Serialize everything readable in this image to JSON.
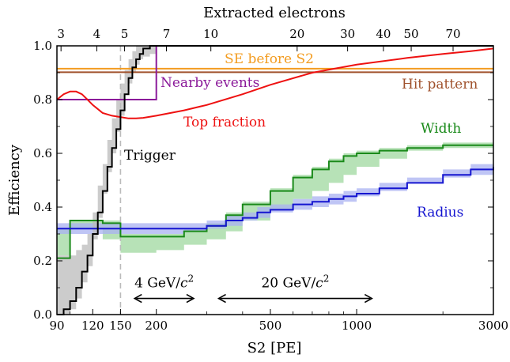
{
  "chart_data": {
    "type": "line",
    "title": "",
    "xlabel": "S2 [PE]",
    "ylabel": "Efficiency",
    "top_axis_label": "Extracted electrons",
    "x_scale": "log",
    "xlim": [
      90,
      3000
    ],
    "ylim": [
      0.0,
      1.0
    ],
    "x_ticks": [
      {
        "value": 90,
        "label": "90"
      },
      {
        "value": 120,
        "label": "120"
      },
      {
        "value": 150,
        "label": "150"
      },
      {
        "value": 200,
        "label": "200"
      },
      {
        "value": 500,
        "label": "500"
      },
      {
        "value": 1000,
        "label": "1000"
      },
      {
        "value": 3000,
        "label": "3000"
      }
    ],
    "y_ticks": [
      {
        "value": 0.0,
        "label": "0.0"
      },
      {
        "value": 0.2,
        "label": "0.2"
      },
      {
        "value": 0.4,
        "label": "0.4"
      },
      {
        "value": 0.6,
        "label": "0.6"
      },
      {
        "value": 0.8,
        "label": "0.8"
      },
      {
        "value": 1.0,
        "label": "1.0"
      }
    ],
    "top_ticks": [
      {
        "value": 3,
        "label": "3"
      },
      {
        "value": 4,
        "label": "4"
      },
      {
        "value": 5,
        "label": "5"
      },
      {
        "value": 7,
        "label": "7"
      },
      {
        "value": 10,
        "label": "10"
      },
      {
        "value": 20,
        "label": "20"
      },
      {
        "value": 30,
        "label": "30"
      },
      {
        "value": 40,
        "label": "40"
      },
      {
        "value": 50,
        "label": "50"
      },
      {
        "value": 70,
        "label": "70"
      }
    ],
    "series": [
      {
        "name": "SE before S2",
        "color": "#f39c20",
        "kind": "hline",
        "y": 0.915
      },
      {
        "name": "Hit pattern",
        "color": "#a0522d",
        "kind": "hline",
        "y": 0.902
      },
      {
        "name": "Nearby events",
        "color": "#8b1a9a",
        "kind": "step",
        "x": [
          90,
          200,
          200,
          3000
        ],
        "y": [
          0.8,
          0.8,
          1.0,
          1.0
        ]
      },
      {
        "name": "Top fraction",
        "color": "#ee1111",
        "kind": "line",
        "x": [
          90,
          95,
          100,
          105,
          110,
          115,
          120,
          130,
          140,
          150,
          160,
          170,
          180,
          200,
          250,
          300,
          400,
          500,
          700,
          1000,
          1500,
          2000,
          2500,
          3000
        ],
        "y": [
          0.8,
          0.82,
          0.83,
          0.83,
          0.82,
          0.8,
          0.78,
          0.75,
          0.74,
          0.735,
          0.73,
          0.73,
          0.732,
          0.74,
          0.76,
          0.78,
          0.82,
          0.855,
          0.9,
          0.93,
          0.955,
          0.97,
          0.98,
          0.99
        ]
      },
      {
        "name": "Width",
        "color": "#1a8a1a",
        "band_color": "#9fd89f",
        "kind": "step",
        "x": [
          90,
          100,
          130,
          150,
          200,
          250,
          300,
          350,
          400,
          500,
          600,
          700,
          800,
          900,
          1000,
          1200,
          1500,
          2000,
          2500,
          3000
        ],
        "y": [
          0.21,
          0.35,
          0.34,
          0.29,
          0.29,
          0.31,
          0.33,
          0.37,
          0.41,
          0.46,
          0.51,
          0.54,
          0.57,
          0.59,
          0.6,
          0.61,
          0.62,
          0.63,
          0.63,
          0.63
        ],
        "band_low": [
          0.2,
          0.32,
          0.32,
          0.28,
          0.23,
          0.24,
          0.26,
          0.28,
          0.31,
          0.35,
          0.39,
          0.43,
          0.46,
          0.49,
          0.52,
          0.55,
          0.58,
          0.61,
          0.62,
          0.62
        ],
        "band_high": [
          0.22,
          0.35,
          0.35,
          0.3,
          0.3,
          0.32,
          0.34,
          0.38,
          0.42,
          0.47,
          0.52,
          0.55,
          0.58,
          0.6,
          0.61,
          0.62,
          0.63,
          0.64,
          0.64,
          0.64
        ]
      },
      {
        "name": "Radius",
        "color": "#1515d0",
        "band_color": "#aab2f2",
        "kind": "step",
        "x": [
          90,
          150,
          200,
          250,
          300,
          350,
          400,
          450,
          500,
          600,
          700,
          800,
          900,
          1000,
          1200,
          1500,
          2000,
          2500,
          3000
        ],
        "y": [
          0.32,
          0.32,
          0.32,
          0.32,
          0.33,
          0.35,
          0.36,
          0.38,
          0.39,
          0.41,
          0.42,
          0.43,
          0.44,
          0.45,
          0.47,
          0.49,
          0.52,
          0.54,
          0.55
        ],
        "band_low": [
          0.3,
          0.3,
          0.3,
          0.3,
          0.31,
          0.32,
          0.33,
          0.35,
          0.36,
          0.38,
          0.39,
          0.4,
          0.41,
          0.42,
          0.44,
          0.46,
          0.49,
          0.51,
          0.52
        ],
        "band_high": [
          0.34,
          0.34,
          0.34,
          0.34,
          0.35,
          0.37,
          0.38,
          0.4,
          0.41,
          0.43,
          0.44,
          0.45,
          0.46,
          0.47,
          0.49,
          0.51,
          0.54,
          0.56,
          0.57
        ]
      },
      {
        "name": "Trigger",
        "color": "#000000",
        "band_color": "#bbbbbb",
        "kind": "step",
        "x": [
          90,
          95,
          100,
          105,
          110,
          115,
          120,
          125,
          130,
          135,
          140,
          145,
          150,
          155,
          160,
          165,
          170,
          175,
          180,
          190,
          200,
          3000
        ],
        "y": [
          0.0,
          0.02,
          0.05,
          0.1,
          0.16,
          0.22,
          0.3,
          0.38,
          0.46,
          0.55,
          0.62,
          0.69,
          0.76,
          0.82,
          0.88,
          0.92,
          0.95,
          0.97,
          0.99,
          1.0,
          1.0,
          1.0
        ],
        "band_low": [
          0.0,
          0.0,
          0.0,
          0.02,
          0.06,
          0.12,
          0.18,
          0.28,
          0.36,
          0.45,
          0.53,
          0.6,
          0.68,
          0.74,
          0.82,
          0.86,
          0.9,
          0.93,
          0.95,
          0.96,
          0.97,
          1.0
        ],
        "band_high": [
          0.22,
          0.22,
          0.22,
          0.24,
          0.26,
          0.3,
          0.38,
          0.48,
          0.56,
          0.65,
          0.73,
          0.8,
          0.86,
          0.91,
          0.95,
          0.98,
          1.0,
          1.0,
          1.0,
          1.0,
          1.0,
          1.0
        ]
      }
    ],
    "reference_lines": [
      {
        "x": 150,
        "color": "#bbbbbb",
        "style": "dashed"
      }
    ],
    "labels": {
      "se_before_s2": "SE before S2",
      "hit_pattern": "Hit pattern",
      "nearby_events": "Nearby events",
      "top_fraction": "Top fraction",
      "width": "Width",
      "radius": "Radius",
      "trigger": "Trigger"
    },
    "annotations": [
      {
        "label_pre": "4 GeV/",
        "label_var": "c",
        "label_sup": "2",
        "x_from": 168,
        "x_to": 270,
        "y": 0.06
      },
      {
        "label_pre": "20 GeV/",
        "label_var": "c",
        "label_sup": "2",
        "x_from": 330,
        "x_to": 1130,
        "y": 0.06
      }
    ]
  }
}
